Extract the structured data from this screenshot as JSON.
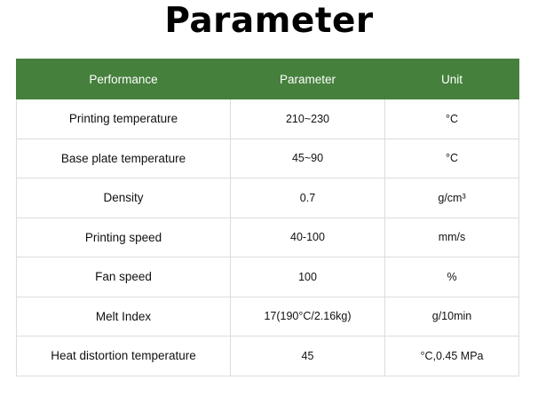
{
  "title": "Parameter",
  "colors": {
    "header_bg": "#45803c",
    "header_text": "#ffffff",
    "border": "#dcdcdc"
  },
  "table": {
    "headers": [
      "Performance",
      "Parameter",
      "Unit"
    ],
    "rows": [
      {
        "performance": "Printing temperature",
        "parameter": "210~230",
        "unit": "°C"
      },
      {
        "performance": "Base plate temperature",
        "parameter": "45~90",
        "unit": "°C"
      },
      {
        "performance": "Density",
        "parameter": "0.7",
        "unit": "g/cm³"
      },
      {
        "performance": "Printing speed",
        "parameter": "40-100",
        "unit": "mm/s"
      },
      {
        "performance": "Fan speed",
        "parameter": "100",
        "unit": "%"
      },
      {
        "performance": "Melt Index",
        "parameter": "17(190°C/2.16kg)",
        "unit": "g/10min"
      },
      {
        "performance": "Heat distortion temperature",
        "parameter": "45",
        "unit": "°C,0.45 MPa"
      }
    ]
  }
}
